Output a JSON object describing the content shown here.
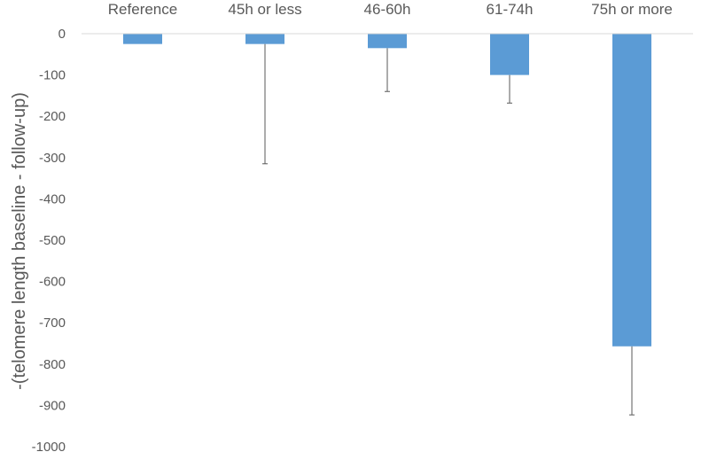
{
  "chart_data": {
    "type": "bar",
    "categories": [
      "Reference",
      "45h or less",
      "46-60h",
      "61-74h",
      "75h or more"
    ],
    "values": [
      -25,
      -25,
      -35,
      -100,
      -757
    ],
    "error_bar_low": [
      null,
      -315,
      -140,
      -168,
      -923
    ],
    "ylabel": "-(telomere length baseline - follow-up)",
    "ylim": [
      -1000,
      0
    ],
    "yticks": [
      0,
      -100,
      -200,
      -300,
      -400,
      -500,
      -600,
      -700,
      -800,
      -900,
      -1000
    ],
    "xaxis_position": "top",
    "grid": false,
    "bar_color": "#5b9bd5",
    "error_bar_color": "#595959",
    "axis_color": "#d9d9d9"
  }
}
